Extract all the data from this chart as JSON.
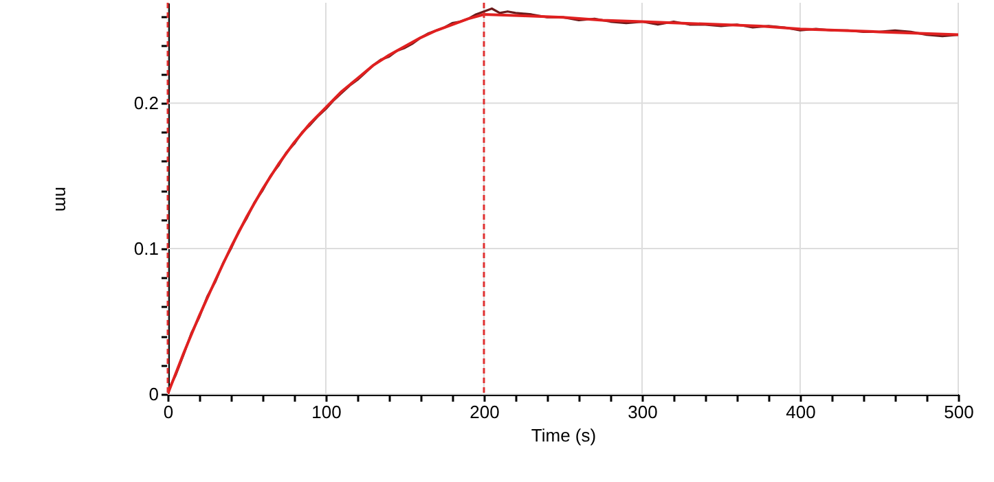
{
  "chart_data": {
    "type": "line",
    "xlabel": "Time (s)",
    "ylabel": "nm",
    "xlim": [
      0,
      500
    ],
    "ylim": [
      0,
      0.269
    ],
    "xticks": [
      0,
      {
        "value": 20,
        "label": null
      },
      {
        "value": 40,
        "label": null
      },
      {
        "value": 60,
        "label": null
      },
      {
        "value": 80,
        "label": null
      },
      100,
      {
        "value": 120,
        "label": null
      },
      {
        "value": 140,
        "label": null
      },
      {
        "value": 160,
        "label": null
      },
      {
        "value": 180,
        "label": null
      },
      200,
      {
        "value": 220,
        "label": null
      },
      {
        "value": 240,
        "label": null
      },
      {
        "value": 260,
        "label": null
      },
      {
        "value": 280,
        "label": null
      },
      300,
      {
        "value": 320,
        "label": null
      },
      {
        "value": 340,
        "label": null
      },
      {
        "value": 360,
        "label": null
      },
      {
        "value": 380,
        "label": null
      },
      400,
      {
        "value": 420,
        "label": null
      },
      {
        "value": 440,
        "label": null
      },
      {
        "value": 460,
        "label": null
      },
      {
        "value": 480,
        "label": null
      },
      500
    ],
    "yticks": [
      0,
      {
        "value": 0.02,
        "label": null
      },
      {
        "value": 0.04,
        "label": null
      },
      {
        "value": 0.06,
        "label": null
      },
      {
        "value": 0.08,
        "label": null
      },
      0.1,
      {
        "value": 0.12,
        "label": null
      },
      {
        "value": 0.14,
        "label": null
      },
      {
        "value": 0.16,
        "label": null
      },
      {
        "value": 0.18,
        "label": null
      },
      0.2,
      {
        "value": 0.22,
        "label": null
      },
      {
        "value": 0.24,
        "label": null
      },
      {
        "value": 0.26,
        "label": null
      }
    ],
    "grid": true,
    "marker": "none",
    "line_style": "solid",
    "ref_lines": [
      {
        "axis": "x",
        "value": 0,
        "color": "#e03030",
        "line_style": "dashed"
      },
      {
        "axis": "x",
        "value": 200,
        "color": "#e03030",
        "line_style": "dashed"
      }
    ],
    "series": [
      {
        "color": "#6b1a1a",
        "x": [
          0,
          5,
          10,
          15,
          20,
          25,
          30,
          35,
          40,
          45,
          50,
          55,
          60,
          65,
          70,
          75,
          80,
          85,
          90,
          95,
          100,
          105,
          110,
          115,
          120,
          125,
          130,
          135,
          140,
          145,
          150,
          155,
          160,
          165,
          170,
          175,
          180,
          185,
          190,
          195,
          200,
          205,
          210,
          215,
          220,
          230,
          240,
          250,
          260,
          270,
          280,
          290,
          300,
          310,
          320,
          330,
          340,
          350,
          360,
          370,
          380,
          390,
          400,
          410,
          420,
          430,
          440,
          450,
          460,
          470,
          480,
          490,
          500
        ],
        "values": [
          0.002,
          0.013,
          0.027,
          0.042,
          0.053,
          0.067,
          0.077,
          0.09,
          0.1,
          0.112,
          0.121,
          0.132,
          0.14,
          0.15,
          0.157,
          0.166,
          0.172,
          0.18,
          0.185,
          0.191,
          0.196,
          0.202,
          0.207,
          0.212,
          0.216,
          0.221,
          0.226,
          0.23,
          0.232,
          0.236,
          0.238,
          0.241,
          0.245,
          0.248,
          0.25,
          0.252,
          0.255,
          0.256,
          0.258,
          0.261,
          0.263,
          0.265,
          0.262,
          0.263,
          0.262,
          0.261,
          0.259,
          0.259,
          0.257,
          0.258,
          0.256,
          0.255,
          0.256,
          0.254,
          0.256,
          0.254,
          0.254,
          0.253,
          0.254,
          0.252,
          0.253,
          0.252,
          0.25,
          0.251,
          0.25,
          0.25,
          0.249,
          0.249,
          0.25,
          0.249,
          0.247,
          0.246,
          0.247
        ]
      },
      {
        "color": "#e02020",
        "x": [
          0,
          10,
          20,
          30,
          40,
          50,
          60,
          70,
          80,
          90,
          100,
          110,
          120,
          130,
          140,
          150,
          160,
          170,
          180,
          190,
          200,
          225,
          250,
          275,
          300,
          325,
          350,
          375,
          400,
          425,
          450,
          475,
          500
        ],
        "values": [
          0,
          0.028,
          0.054,
          0.078,
          0.101,
          0.122,
          0.141,
          0.158,
          0.173,
          0.186,
          0.197,
          0.208,
          0.217,
          0.226,
          0.233,
          0.239,
          0.245,
          0.25,
          0.254,
          0.258,
          0.261,
          0.26,
          0.259,
          0.257,
          0.256,
          0.255,
          0.254,
          0.253,
          0.251,
          0.25,
          0.249,
          0.248,
          0.247
        ]
      }
    ]
  }
}
